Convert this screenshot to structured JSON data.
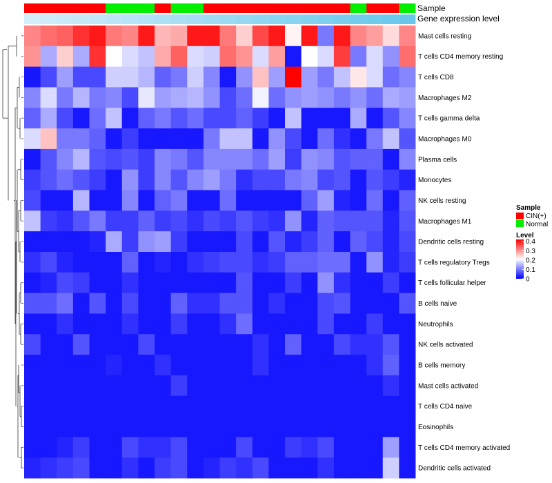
{
  "chart_data": {
    "type": "heatmap",
    "title": "",
    "annotation_labels": {
      "sample": "Sample",
      "level": "Gene expression level"
    },
    "legend_sample": {
      "title": "Sample",
      "entries": [
        {
          "label": "CIN(+)",
          "color": "#ff0000"
        },
        {
          "label": "Normal",
          "color": "#00ee00"
        }
      ]
    },
    "legend_level": {
      "title": "Level",
      "ticks": [
        "0.4",
        "0.3",
        "0.2",
        "0.1",
        "0"
      ],
      "tick_values": [
        0.4,
        0.3,
        0.2,
        0.1,
        0
      ],
      "range": [
        0,
        0.42
      ]
    },
    "color_scale": {
      "low": "#0000ff",
      "mid": "#ffffff",
      "high": "#ff0000",
      "midpoint": 0.21
    },
    "sample_groups": [
      "CIN(+)",
      "CIN(+)",
      "CIN(+)",
      "CIN(+)",
      "CIN(+)",
      "Normal",
      "Normal",
      "Normal",
      "CIN(+)",
      "Normal",
      "Normal",
      "CIN(+)",
      "CIN(+)",
      "CIN(+)",
      "CIN(+)",
      "CIN(+)",
      "CIN(+)",
      "CIN(+)",
      "CIN(+)",
      "CIN(+)",
      "Normal",
      "CIN(+)",
      "CIN(+)",
      "Normal"
    ],
    "gene_level_shading": [
      0.05,
      0.07,
      0.09,
      0.11,
      0.13,
      0.15,
      0.17,
      0.19,
      0.21,
      0.23,
      0.25,
      0.27,
      0.29,
      0.31,
      0.33,
      0.35,
      0.37,
      0.39,
      0.41,
      0.43,
      0.45,
      0.47,
      0.49,
      0.51
    ],
    "rows": [
      {
        "label": "Mast cells resting",
        "values": [
          0.31,
          0.33,
          0.34,
          0.38,
          0.4,
          0.32,
          0.31,
          0.4,
          0.27,
          0.28,
          0.4,
          0.4,
          0.32,
          0.25,
          0.36,
          0.4,
          0.22,
          0.4,
          0.1,
          0.4,
          0.31,
          0.29,
          0.24,
          0.31
        ]
      },
      {
        "label": "T cells CD4 memory resting",
        "values": [
          0.3,
          0.14,
          0.25,
          0.14,
          0.38,
          0.21,
          0.18,
          0.16,
          0.28,
          0.34,
          0.18,
          0.17,
          0.33,
          0.3,
          0.18,
          0.29,
          0.02,
          0.21,
          0.18,
          0.37,
          0.1,
          0.18,
          0.12,
          0.33
        ]
      },
      {
        "label": "T cells CD8",
        "values": [
          0.02,
          0.06,
          0.13,
          0.06,
          0.06,
          0.17,
          0.17,
          0.15,
          0.08,
          0.1,
          0.17,
          0.11,
          0.02,
          0.12,
          0.26,
          0.13,
          0.42,
          0.13,
          0.1,
          0.16,
          0.23,
          0.18,
          0.09,
          0.11
        ]
      },
      {
        "label": "Macrophages M2",
        "values": [
          0.11,
          0.18,
          0.1,
          0.15,
          0.1,
          0.11,
          0.06,
          0.19,
          0.13,
          0.14,
          0.15,
          0.12,
          0.06,
          0.09,
          0.2,
          0.09,
          0.12,
          0.13,
          0.12,
          0.1,
          0.12,
          0.09,
          0.14,
          0.13
        ]
      },
      {
        "label": "T cells gamma delta",
        "values": [
          0.08,
          0.14,
          0.06,
          0.02,
          0.09,
          0.16,
          0.02,
          0.08,
          0.1,
          0.07,
          0.09,
          0.06,
          0.06,
          0.08,
          0.05,
          0.02,
          0.16,
          0.02,
          0.02,
          0.02,
          0.14,
          0.02,
          0.07,
          0.11
        ]
      },
      {
        "label": "Macrophages M0",
        "values": [
          0.18,
          0.26,
          0.1,
          0.1,
          0.08,
          0.02,
          0.05,
          0.02,
          0.02,
          0.02,
          0.02,
          0.1,
          0.16,
          0.16,
          0.02,
          0.12,
          0.06,
          0.02,
          0.09,
          0.04,
          0.02,
          0.1,
          0.16,
          0.07
        ]
      },
      {
        "label": "Plasma cells",
        "values": [
          0.02,
          0.07,
          0.11,
          0.15,
          0.07,
          0.06,
          0.07,
          0.05,
          0.11,
          0.1,
          0.07,
          0.11,
          0.11,
          0.11,
          0.09,
          0.13,
          0.05,
          0.12,
          0.11,
          0.07,
          0.08,
          0.08,
          0.02,
          0.11
        ]
      },
      {
        "label": "Monocytes",
        "values": [
          0.05,
          0.07,
          0.09,
          0.07,
          0.05,
          0.02,
          0.12,
          0.05,
          0.11,
          0.07,
          0.11,
          0.13,
          0.1,
          0.04,
          0.06,
          0.06,
          0.1,
          0.11,
          0.06,
          0.07,
          0.02,
          0.07,
          0.05,
          0.03
        ]
      },
      {
        "label": "NK cells resting",
        "values": [
          0.06,
          0.02,
          0.02,
          0.15,
          0.02,
          0.02,
          0.11,
          0.02,
          0.08,
          0.1,
          0.02,
          0.02,
          0.09,
          0.02,
          0.02,
          0.02,
          0.02,
          0.08,
          0.13,
          0.03,
          0.02,
          0.09,
          0.02,
          0.08
        ]
      },
      {
        "label": "Macrophages M1",
        "values": [
          0.16,
          0.05,
          0.04,
          0.07,
          0.1,
          0.05,
          0.05,
          0.08,
          0.05,
          0.06,
          0.04,
          0.06,
          0.05,
          0.07,
          0.05,
          0.04,
          0.12,
          0.03,
          0.08,
          0.07,
          0.07,
          0.07,
          0.03,
          0.07
        ]
      },
      {
        "label": "Dendritic cells resting",
        "values": [
          0.02,
          0.02,
          0.02,
          0.02,
          0.03,
          0.14,
          0.05,
          0.12,
          0.13,
          0.05,
          0.02,
          0.02,
          0.02,
          0.06,
          0.02,
          0.07,
          0.03,
          0.05,
          0.08,
          0.02,
          0.08,
          0.06,
          0.03,
          0.06
        ]
      },
      {
        "label": "T cells regulatory  Tregs",
        "values": [
          0.04,
          0.06,
          0.03,
          0.02,
          0.02,
          0.02,
          0.08,
          0.02,
          0.03,
          0.02,
          0.04,
          0.05,
          0.06,
          0.06,
          0.04,
          0.05,
          0.08,
          0.08,
          0.09,
          0.09,
          0.02,
          0.12,
          0.03,
          0.05
        ]
      },
      {
        "label": "T cells follicular helper",
        "values": [
          0.02,
          0.03,
          0.06,
          0.05,
          0.02,
          0.02,
          0.04,
          0.02,
          0.02,
          0.02,
          0.02,
          0.02,
          0.02,
          0.07,
          0.02,
          0.02,
          0.05,
          0.02,
          0.12,
          0.04,
          0.02,
          0.02,
          0.05,
          0.02
        ]
      },
      {
        "label": "B cells naive",
        "values": [
          0.07,
          0.07,
          0.09,
          0.02,
          0.07,
          0.02,
          0.06,
          0.02,
          0.02,
          0.08,
          0.04,
          0.04,
          0.07,
          0.07,
          0.02,
          0.04,
          0.02,
          0.02,
          0.06,
          0.07,
          0.02,
          0.02,
          0.02,
          0.07
        ]
      },
      {
        "label": "Neutrophils",
        "values": [
          0.02,
          0.02,
          0.04,
          0.02,
          0.02,
          0.02,
          0.04,
          0.02,
          0.02,
          0.05,
          0.02,
          0.02,
          0.04,
          0.09,
          0.02,
          0.02,
          0.02,
          0.02,
          0.06,
          0.02,
          0.02,
          0.05,
          0.02,
          0.02
        ]
      },
      {
        "label": "NK cells activated",
        "values": [
          0.06,
          0.02,
          0.02,
          0.07,
          0.02,
          0.02,
          0.02,
          0.06,
          0.02,
          0.02,
          0.02,
          0.02,
          0.02,
          0.02,
          0.04,
          0.02,
          0.08,
          0.02,
          0.02,
          0.06,
          0.04,
          0.04,
          0.07,
          0.02
        ]
      },
      {
        "label": "B cells memory",
        "values": [
          0.02,
          0.02,
          0.02,
          0.02,
          0.02,
          0.03,
          0.02,
          0.02,
          0.04,
          0.02,
          0.02,
          0.02,
          0.02,
          0.02,
          0.04,
          0.02,
          0.02,
          0.02,
          0.02,
          0.02,
          0.02,
          0.04,
          0.08,
          0.02
        ]
      },
      {
        "label": "Mast cells activated",
        "values": [
          0.02,
          0.02,
          0.02,
          0.02,
          0.02,
          0.02,
          0.02,
          0.02,
          0.02,
          0.05,
          0.02,
          0.02,
          0.02,
          0.02,
          0.02,
          0.02,
          0.02,
          0.02,
          0.02,
          0.02,
          0.02,
          0.02,
          0.04,
          0.02
        ]
      },
      {
        "label": "T cells CD4 naive",
        "values": [
          0.02,
          0.02,
          0.02,
          0.02,
          0.02,
          0.02,
          0.02,
          0.02,
          0.02,
          0.02,
          0.02,
          0.02,
          0.02,
          0.02,
          0.02,
          0.02,
          0.02,
          0.02,
          0.02,
          0.02,
          0.02,
          0.02,
          0.02,
          0.02
        ]
      },
      {
        "label": "Eosinophils",
        "values": [
          0.02,
          0.02,
          0.02,
          0.02,
          0.02,
          0.02,
          0.02,
          0.02,
          0.02,
          0.02,
          0.02,
          0.02,
          0.02,
          0.02,
          0.02,
          0.02,
          0.02,
          0.02,
          0.02,
          0.02,
          0.02,
          0.02,
          0.02,
          0.02
        ]
      },
      {
        "label": "T cells CD4 memory activated",
        "values": [
          0.02,
          0.02,
          0.03,
          0.05,
          0.02,
          0.02,
          0.06,
          0.04,
          0.04,
          0.06,
          0.02,
          0.02,
          0.02,
          0.06,
          0.02,
          0.02,
          0.05,
          0.04,
          0.06,
          0.02,
          0.02,
          0.02,
          0.13,
          0.02
        ]
      },
      {
        "label": "Dendritic cells activated",
        "values": [
          0.03,
          0.04,
          0.05,
          0.06,
          0.02,
          0.02,
          0.04,
          0.02,
          0.05,
          0.06,
          0.02,
          0.03,
          0.05,
          0.04,
          0.06,
          0.02,
          0.02,
          0.02,
          0.04,
          0.02,
          0.02,
          0.02,
          0.17,
          0.02
        ]
      }
    ]
  }
}
